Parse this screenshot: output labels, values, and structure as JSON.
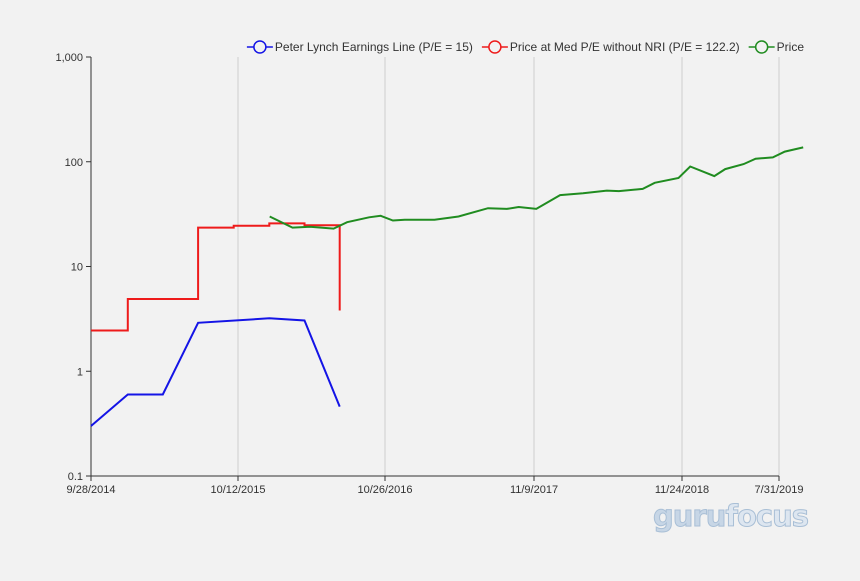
{
  "chart_data": {
    "type": "line",
    "y_scale": "log",
    "ylim": [
      0.1,
      1000
    ],
    "y_ticks": [
      {
        "value": 0.1,
        "label": "0.1"
      },
      {
        "value": 1,
        "label": "1"
      },
      {
        "value": 10,
        "label": "10"
      },
      {
        "value": 100,
        "label": "100"
      },
      {
        "value": 1000,
        "label": "1,000"
      }
    ],
    "xlim": [
      "2014-09-28",
      "2019-07-31"
    ],
    "x_ticks": [
      {
        "date": "2014-09-28",
        "label": "9/28/2014"
      },
      {
        "date": "2015-10-12",
        "label": "10/12/2015"
      },
      {
        "date": "2016-10-26",
        "label": "10/26/2016"
      },
      {
        "date": "2017-11-09",
        "label": "11/9/2017"
      },
      {
        "date": "2018-11-24",
        "label": "11/24/2018"
      },
      {
        "date": "2019-07-31",
        "label": "7/31/2019"
      }
    ],
    "grid": {
      "vertical": true,
      "horizontal": false
    },
    "legend_position": "top-right",
    "series": [
      {
        "name": "Peter Lynch Earnings Line (P/E = 15)",
        "color": "#1414e6",
        "step": false,
        "points": [
          [
            "2014-09-28",
            0.3
          ],
          [
            "2015-01-01",
            0.6
          ],
          [
            "2015-04-01",
            0.6
          ],
          [
            "2015-07-01",
            2.9
          ],
          [
            "2016-01-01",
            3.2
          ],
          [
            "2016-04-01",
            3.05
          ],
          [
            "2016-07-01",
            0.46
          ]
        ]
      },
      {
        "name": "Price at Med P/E without NRI (P/E = 122.2)",
        "color": "#ee1b1b",
        "step": true,
        "points": [
          [
            "2014-09-28",
            2.45
          ],
          [
            "2015-01-01",
            4.9
          ],
          [
            "2015-07-01",
            23.5
          ],
          [
            "2015-10-01",
            24.5
          ],
          [
            "2016-01-01",
            25.8
          ],
          [
            "2016-04-01",
            24.8
          ],
          [
            "2016-07-01",
            3.8
          ]
        ]
      },
      {
        "name": "Price",
        "color": "#208c20",
        "step": false,
        "points": [
          [
            "2016-01-02",
            30
          ],
          [
            "2016-03-01",
            23.5
          ],
          [
            "2016-04-15",
            24
          ],
          [
            "2016-06-15",
            23
          ],
          [
            "2016-07-20",
            26.5
          ],
          [
            "2016-09-15",
            29.5
          ],
          [
            "2016-10-15",
            30.5
          ],
          [
            "2016-11-15",
            27.5
          ],
          [
            "2016-12-15",
            28
          ],
          [
            "2017-03-01",
            28
          ],
          [
            "2017-05-01",
            30
          ],
          [
            "2017-07-15",
            36
          ],
          [
            "2017-09-01",
            35.5
          ],
          [
            "2017-10-01",
            37
          ],
          [
            "2017-11-15",
            35.5
          ],
          [
            "2018-01-15",
            48
          ],
          [
            "2018-03-15",
            50
          ],
          [
            "2018-05-15",
            53
          ],
          [
            "2018-06-15",
            52.5
          ],
          [
            "2018-08-15",
            55
          ],
          [
            "2018-09-15",
            63
          ],
          [
            "2018-11-15",
            70
          ],
          [
            "2018-12-15",
            90
          ],
          [
            "2019-02-15",
            73
          ],
          [
            "2019-03-15",
            85
          ],
          [
            "2019-05-01",
            95
          ],
          [
            "2019-06-01",
            107
          ],
          [
            "2019-07-15",
            110
          ],
          [
            "2019-08-15",
            125
          ],
          [
            "2019-10-01",
            137
          ]
        ]
      }
    ]
  },
  "watermark": {
    "part1": "guru",
    "part2": "focus"
  }
}
